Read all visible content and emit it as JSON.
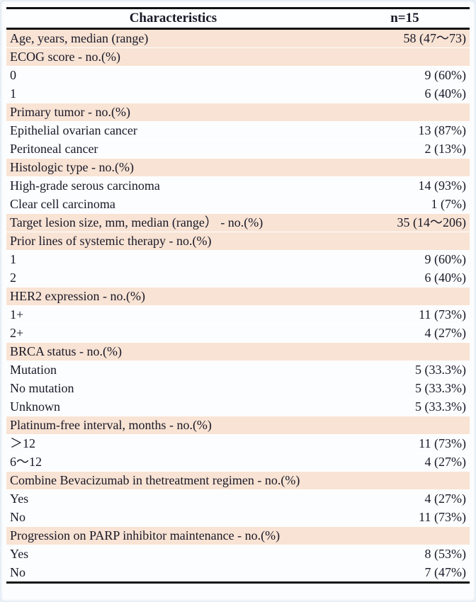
{
  "table": {
    "header": {
      "characteristics": "Characteristics",
      "n": "n=15"
    },
    "colors": {
      "shaded_row": "#f8e3d4",
      "text": "#191827",
      "border": "#111111"
    },
    "rows": [
      {
        "label": "Age, years, median (range)",
        "value": "58 (47～73)",
        "shaded": true
      },
      {
        "label": "ECOG score - no.(%)",
        "value": "",
        "shaded": true
      },
      {
        "label": "0",
        "value": "9 (60%)",
        "shaded": false
      },
      {
        "label": "1",
        "value": "6 (40%)",
        "shaded": false
      },
      {
        "label": "Primary tumor  - no.(%)",
        "value": "",
        "shaded": true
      },
      {
        "label": "Epithelial ovarian cancer",
        "value": "13 (87%)",
        "shaded": false
      },
      {
        "label": "Peritoneal cancer",
        "value": "2 (13%)",
        "shaded": false
      },
      {
        "label": "Histologic type - no.(%)",
        "value": "",
        "shaded": true
      },
      {
        "label": "High-grade serous carcinoma",
        "value": "14 (93%)",
        "shaded": false
      },
      {
        "label": "Clear cell carcinoma",
        "value": "1 (7%)",
        "shaded": false
      },
      {
        "label": "Target lesion size, mm, median (range） - no.(%)",
        "value": "35 (14～206)",
        "shaded": true
      },
      {
        "label": "Prior lines of systemic therapy - no.(%)",
        "value": "",
        "shaded": true
      },
      {
        "label": "1",
        "value": "9 (60%)",
        "shaded": false
      },
      {
        "label": "2",
        "value": "6 (40%)",
        "shaded": false
      },
      {
        "label": "HER2 expression - no.(%)",
        "value": "",
        "shaded": true
      },
      {
        "label": "1+",
        "value": "11 (73%)",
        "shaded": false
      },
      {
        "label": "2+",
        "value": "4 (27%)",
        "shaded": false
      },
      {
        "label": "BRCA status - no.(%)",
        "value": "",
        "shaded": true
      },
      {
        "label": "Mutation",
        "value": "5 (33.3%)",
        "shaded": false
      },
      {
        "label": "No mutation",
        "value": "5 (33.3%)",
        "shaded": false
      },
      {
        "label": "Unknown",
        "value": "5 (33.3%)",
        "shaded": false
      },
      {
        "label": "Platinum-free interval, months - no.(%)",
        "value": "",
        "shaded": true
      },
      {
        "label": "＞12",
        "value": "11 (73%)",
        "shaded": false
      },
      {
        "label": "6～12",
        "value": "4 (27%)",
        "shaded": false
      },
      {
        "label": "Combine Bevacizumab in thetreatment regimen - no.(%)",
        "value": "",
        "shaded": true
      },
      {
        "label": "Yes",
        "value": "4 (27%)",
        "shaded": false
      },
      {
        "label": "No",
        "value": "11 (73%)",
        "shaded": false
      },
      {
        "label": "Progression on PARP inhibitor maintenance - no.(%)",
        "value": "",
        "shaded": true
      },
      {
        "label": "Yes",
        "value": "8 (53%)",
        "shaded": false
      },
      {
        "label": "No",
        "value": "7 (47%)",
        "shaded": false
      }
    ]
  }
}
